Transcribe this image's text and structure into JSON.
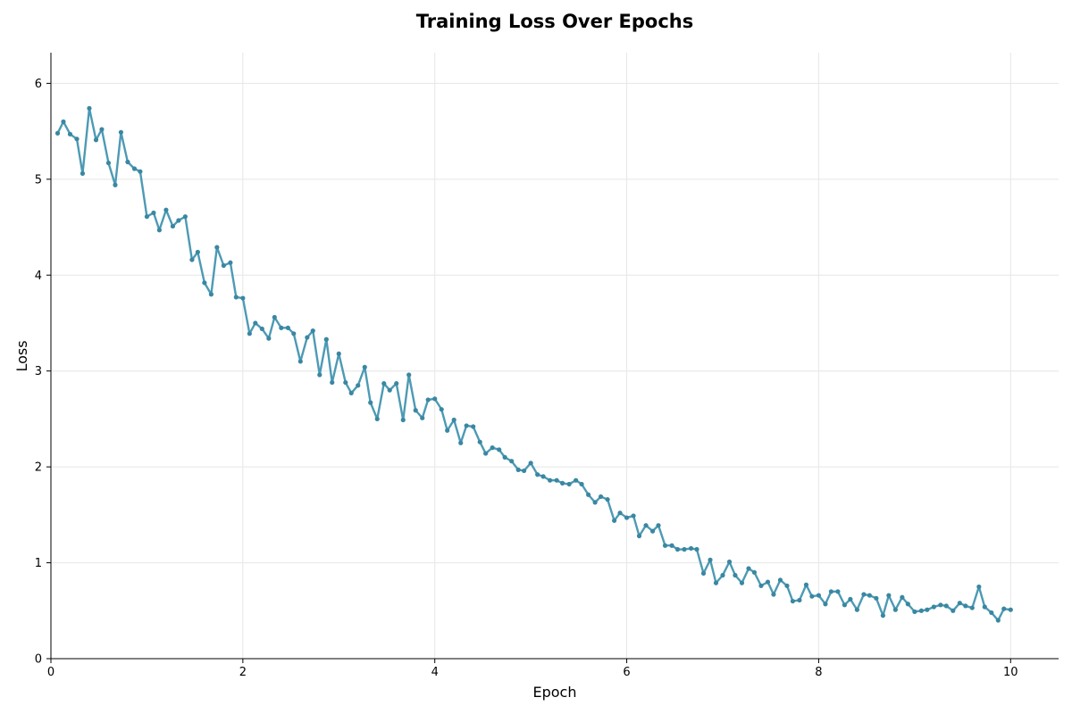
{
  "colors": {
    "line": "#4d9ab4",
    "marker": "#3a87a2",
    "grid": "#e6e6e6",
    "axis": "#000000"
  },
  "chart_data": {
    "type": "line",
    "title": "Training Loss Over Epochs",
    "xlabel": "Epoch",
    "ylabel": "Loss",
    "xlim": [
      0,
      10.5
    ],
    "ylim": [
      0,
      6.32
    ],
    "xticks": [
      0,
      2,
      4,
      6,
      8,
      10
    ],
    "yticks": [
      0,
      1,
      2,
      3,
      4,
      5,
      6
    ],
    "grid": true,
    "legend": "none",
    "series": [
      {
        "x": [
          0.07,
          0.13,
          0.2,
          0.27,
          0.33,
          0.4,
          0.47,
          0.53,
          0.6,
          0.67,
          0.73,
          0.8,
          0.87,
          0.93,
          1.0,
          1.07,
          1.13,
          1.2,
          1.27,
          1.33,
          1.4,
          1.47,
          1.53,
          1.6,
          1.67,
          1.73,
          1.8,
          1.87,
          1.93,
          2.0,
          2.07,
          2.13,
          2.2,
          2.27,
          2.33,
          2.4,
          2.47,
          2.53,
          2.6,
          2.67,
          2.73,
          2.8,
          2.87,
          2.93,
          3.0,
          3.07,
          3.13,
          3.2,
          3.27,
          3.33,
          3.4,
          3.47,
          3.53,
          3.6,
          3.67,
          3.73,
          3.8,
          3.87,
          3.93,
          4.0,
          4.07,
          4.13,
          4.2,
          4.27,
          4.33,
          4.4,
          4.47,
          4.53,
          4.6,
          4.67,
          4.73,
          4.8,
          4.87,
          4.93,
          5.0,
          5.07,
          5.13,
          5.2,
          5.27,
          5.33,
          5.4,
          5.47,
          5.53,
          5.6,
          5.67,
          5.73,
          5.8,
          5.87,
          5.93,
          6.0,
          6.07,
          6.13,
          6.2,
          6.27,
          6.33,
          6.4,
          6.47,
          6.53,
          6.6,
          6.67,
          6.73,
          6.8,
          6.87,
          6.93,
          7.0,
          7.07,
          7.13,
          7.2,
          7.27,
          7.33,
          7.4,
          7.47,
          7.53,
          7.6,
          7.67,
          7.73,
          7.8,
          7.87,
          7.93,
          8.0,
          8.07,
          8.13,
          8.2,
          8.27,
          8.33,
          8.4,
          8.47,
          8.53,
          8.6,
          8.67,
          8.73,
          8.8,
          8.87,
          8.93,
          9.0,
          9.07,
          9.13,
          9.2,
          9.27,
          9.33,
          9.4,
          9.47,
          9.53,
          9.6,
          9.67,
          9.73,
          9.8,
          9.87,
          9.93,
          10.0
        ],
        "y": [
          5.48,
          5.6,
          5.47,
          5.42,
          5.06,
          5.74,
          5.41,
          5.52,
          5.17,
          4.94,
          5.49,
          5.18,
          5.11,
          5.08,
          4.61,
          4.65,
          4.47,
          4.68,
          4.51,
          4.57,
          4.61,
          4.16,
          4.24,
          3.92,
          3.8,
          4.29,
          4.1,
          4.13,
          3.77,
          3.76,
          3.39,
          3.5,
          3.44,
          3.34,
          3.56,
          3.45,
          3.45,
          3.39,
          3.1,
          3.35,
          3.42,
          2.96,
          3.33,
          2.88,
          3.18,
          2.88,
          2.77,
          2.85,
          3.04,
          2.67,
          2.5,
          2.87,
          2.8,
          2.87,
          2.49,
          2.96,
          2.59,
          2.51,
          2.7,
          2.71,
          2.6,
          2.38,
          2.49,
          2.25,
          2.43,
          2.42,
          2.26,
          2.14,
          2.2,
          2.18,
          2.1,
          2.06,
          1.97,
          1.96,
          2.04,
          1.92,
          1.9,
          1.86,
          1.86,
          1.83,
          1.82,
          1.86,
          1.82,
          1.71,
          1.63,
          1.69,
          1.66,
          1.44,
          1.52,
          1.47,
          1.49,
          1.28,
          1.39,
          1.33,
          1.39,
          1.18,
          1.18,
          1.14,
          1.14,
          1.15,
          1.14,
          0.89,
          1.03,
          0.79,
          0.87,
          1.01,
          0.87,
          0.79,
          0.94,
          0.9,
          0.76,
          0.8,
          0.67,
          0.82,
          0.76,
          0.6,
          0.61,
          0.77,
          0.65,
          0.66,
          0.57,
          0.7,
          0.7,
          0.56,
          0.62,
          0.51,
          0.67,
          0.66,
          0.63,
          0.45,
          0.66,
          0.51,
          0.64,
          0.57,
          0.49,
          0.5,
          0.51,
          0.54,
          0.56,
          0.55,
          0.5,
          0.58,
          0.55,
          0.53,
          0.75,
          0.54,
          0.48,
          0.4,
          0.52,
          0.51
        ]
      }
    ]
  }
}
